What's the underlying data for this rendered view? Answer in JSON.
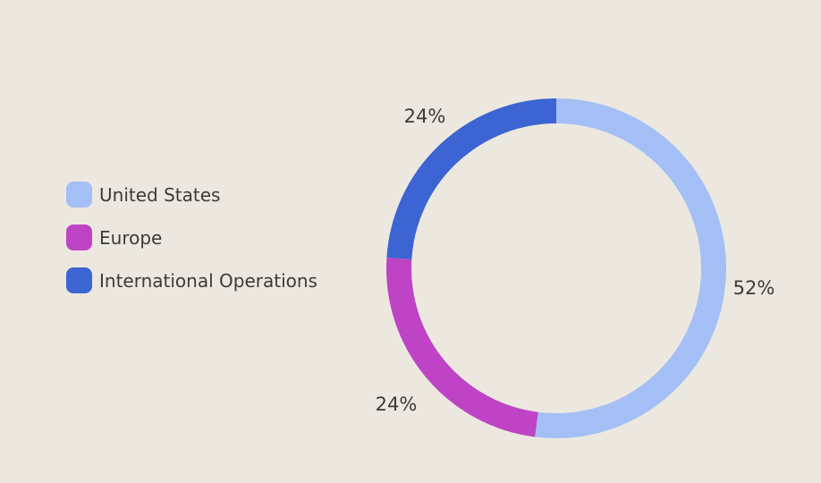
{
  "background_color": "#ECE8DF",
  "text_color": "#3B3B3B",
  "legend": {
    "position": "left"
  },
  "chart_data": {
    "type": "pie",
    "variant": "donut",
    "title": "",
    "start_angle_deg": 0,
    "direction": "clockwise",
    "legend_position": "left",
    "categories": [
      "United States",
      "Europe",
      "International Operations"
    ],
    "values": [
      52,
      24,
      24
    ],
    "slices": [
      {
        "name": "United States",
        "value": 52,
        "label": "52%",
        "color": "#A4BFF5"
      },
      {
        "name": "Europe",
        "value": 24,
        "label": "24%",
        "color": "#BE44C5"
      },
      {
        "name": "International Operations",
        "value": 24,
        "label": "24%",
        "color": "#3C64D2"
      }
    ]
  }
}
